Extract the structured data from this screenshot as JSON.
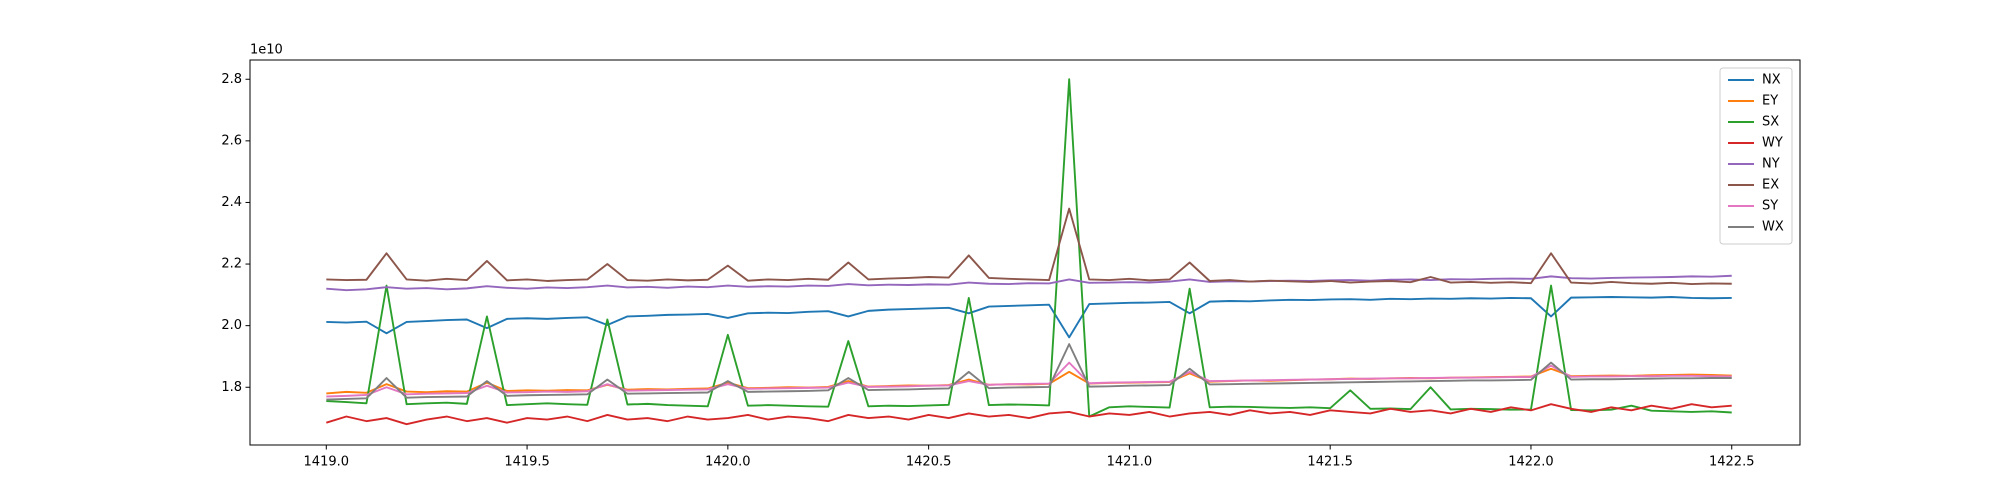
{
  "chart_data": {
    "type": "line",
    "y_offset_label": "1e10",
    "x": [
      1419,
      1419.05,
      1419.1,
      1419.15,
      1419.2,
      1419.25,
      1419.3,
      1419.35,
      1419.4,
      1419.45,
      1419.5,
      1419.55,
      1419.6,
      1419.65,
      1419.7,
      1419.75,
      1419.8,
      1419.85,
      1419.9,
      1419.95,
      1420,
      1420.05,
      1420.1,
      1420.15,
      1420.2,
      1420.25,
      1420.3,
      1420.35,
      1420.4,
      1420.45,
      1420.5,
      1420.55,
      1420.6,
      1420.65,
      1420.7,
      1420.75,
      1420.8,
      1420.85,
      1420.9,
      1420.95,
      1421,
      1421.05,
      1421.1,
      1421.15,
      1421.2,
      1421.25,
      1421.3,
      1421.35,
      1421.4,
      1421.45,
      1421.5,
      1421.55,
      1421.6,
      1421.65,
      1421.7,
      1421.75,
      1421.8,
      1421.85,
      1421.9,
      1421.95,
      1422,
      1422.05,
      1422.1,
      1422.15,
      1422.2,
      1422.25,
      1422.3,
      1422.35,
      1422.4,
      1422.45,
      1422.5
    ],
    "xlim": [
      1418.81,
      1422.67
    ],
    "xticks": [
      {
        "value": 1419,
        "label": "1419.0"
      },
      1419.5,
      {
        "value": 1420,
        "label": "1420.0"
      },
      1420.5,
      {
        "value": 1421,
        "label": "1421.0"
      },
      1421.5,
      {
        "value": 1422,
        "label": "1422.0"
      },
      1422.5
    ],
    "ylim": [
      1.6125,
      2.8625
    ],
    "yticks": [
      1.8,
      {
        "value": 2,
        "label": "2.0"
      },
      2.2,
      2.4,
      2.6,
      2.8
    ],
    "legend": "upper right",
    "series": [
      {
        "name": "NX",
        "color": "#1f77b4",
        "values": [
          2.012,
          2.01,
          2.013,
          1.975,
          2.012,
          2.015,
          2.018,
          2.02,
          1.992,
          2.022,
          2.024,
          2.022,
          2.025,
          2.027,
          2.002,
          2.03,
          2.032,
          2.035,
          2.036,
          2.038,
          2.025,
          2.04,
          2.042,
          2.041,
          2.045,
          2.047,
          2.03,
          2.048,
          2.052,
          2.054,
          2.056,
          2.058,
          2.04,
          2.062,
          2.064,
          2.066,
          2.068,
          1.962,
          2.07,
          2.072,
          2.074,
          2.075,
          2.077,
          2.04,
          2.078,
          2.08,
          2.079,
          2.082,
          2.084,
          2.083,
          2.085,
          2.086,
          2.084,
          2.087,
          2.086,
          2.088,
          2.087,
          2.089,
          2.088,
          2.09,
          2.089,
          2.03,
          2.091,
          2.092,
          2.093,
          2.092,
          2.091,
          2.093,
          2.09,
          2.089,
          2.09
        ]
      },
      {
        "name": "EY",
        "color": "#ff7f0e",
        "values": [
          1.78,
          1.785,
          1.782,
          1.81,
          1.786,
          1.784,
          1.787,
          1.786,
          1.815,
          1.788,
          1.79,
          1.789,
          1.791,
          1.79,
          1.808,
          1.792,
          1.794,
          1.793,
          1.795,
          1.796,
          1.815,
          1.797,
          1.798,
          1.8,
          1.799,
          1.801,
          1.82,
          1.802,
          1.804,
          1.806,
          1.805,
          1.807,
          1.825,
          1.808,
          1.81,
          1.809,
          1.811,
          1.85,
          1.812,
          1.814,
          1.815,
          1.816,
          1.817,
          1.845,
          1.818,
          1.82,
          1.822,
          1.821,
          1.823,
          1.825,
          1.826,
          1.828,
          1.827,
          1.829,
          1.83,
          1.829,
          1.831,
          1.832,
          1.833,
          1.834,
          1.835,
          1.86,
          1.836,
          1.837,
          1.838,
          1.837,
          1.839,
          1.84,
          1.841,
          1.84,
          1.838
        ]
      },
      {
        "name": "SX",
        "color": "#2ca02c",
        "values": [
          1.755,
          1.752,
          1.748,
          2.13,
          1.745,
          1.748,
          1.75,
          1.746,
          2.03,
          1.742,
          1.745,
          1.748,
          1.745,
          1.743,
          2.02,
          1.744,
          1.746,
          1.742,
          1.74,
          1.738,
          1.97,
          1.74,
          1.742,
          1.74,
          1.738,
          1.737,
          1.95,
          1.738,
          1.74,
          1.739,
          1.741,
          1.743,
          2.09,
          1.742,
          1.744,
          1.743,
          1.741,
          2.8,
          1.705,
          1.735,
          1.738,
          1.736,
          1.734,
          2.12,
          1.735,
          1.737,
          1.736,
          1.734,
          1.733,
          1.735,
          1.732,
          1.79,
          1.73,
          1.731,
          1.729,
          1.8,
          1.728,
          1.73,
          1.729,
          1.727,
          1.728,
          2.13,
          1.726,
          1.725,
          1.727,
          1.74,
          1.724,
          1.722,
          1.72,
          1.722,
          1.718
        ]
      },
      {
        "name": "WY",
        "color": "#d62728",
        "values": [
          1.685,
          1.705,
          1.69,
          1.7,
          1.68,
          1.695,
          1.705,
          1.69,
          1.7,
          1.685,
          1.7,
          1.695,
          1.705,
          1.69,
          1.71,
          1.695,
          1.7,
          1.69,
          1.705,
          1.695,
          1.7,
          1.71,
          1.695,
          1.705,
          1.7,
          1.69,
          1.71,
          1.7,
          1.705,
          1.695,
          1.71,
          1.7,
          1.715,
          1.705,
          1.71,
          1.7,
          1.715,
          1.72,
          1.705,
          1.715,
          1.71,
          1.72,
          1.705,
          1.715,
          1.72,
          1.71,
          1.725,
          1.715,
          1.72,
          1.71,
          1.725,
          1.72,
          1.715,
          1.73,
          1.72,
          1.725,
          1.715,
          1.73,
          1.72,
          1.735,
          1.725,
          1.745,
          1.73,
          1.72,
          1.735,
          1.725,
          1.74,
          1.73,
          1.745,
          1.735,
          1.74
        ]
      },
      {
        "name": "NY",
        "color": "#9467bd",
        "values": [
          2.12,
          2.115,
          2.118,
          2.125,
          2.12,
          2.122,
          2.118,
          2.121,
          2.128,
          2.123,
          2.12,
          2.124,
          2.122,
          2.125,
          2.13,
          2.124,
          2.126,
          2.123,
          2.127,
          2.125,
          2.13,
          2.126,
          2.128,
          2.127,
          2.13,
          2.129,
          2.135,
          2.131,
          2.133,
          2.132,
          2.134,
          2.133,
          2.14,
          2.136,
          2.135,
          2.138,
          2.137,
          2.15,
          2.139,
          2.14,
          2.141,
          2.14,
          2.143,
          2.15,
          2.142,
          2.144,
          2.143,
          2.145,
          2.146,
          2.145,
          2.147,
          2.148,
          2.146,
          2.149,
          2.15,
          2.148,
          2.151,
          2.15,
          2.152,
          2.153,
          2.152,
          2.16,
          2.154,
          2.153,
          2.155,
          2.156,
          2.157,
          2.158,
          2.16,
          2.159,
          2.162
        ]
      },
      {
        "name": "EX",
        "color": "#8c564b",
        "values": [
          2.15,
          2.148,
          2.149,
          2.235,
          2.15,
          2.146,
          2.152,
          2.148,
          2.21,
          2.147,
          2.15,
          2.145,
          2.148,
          2.15,
          2.2,
          2.148,
          2.146,
          2.15,
          2.147,
          2.149,
          2.195,
          2.146,
          2.15,
          2.148,
          2.152,
          2.149,
          2.205,
          2.15,
          2.153,
          2.155,
          2.158,
          2.156,
          2.228,
          2.155,
          2.152,
          2.15,
          2.148,
          2.38,
          2.15,
          2.148,
          2.152,
          2.147,
          2.15,
          2.205,
          2.145,
          2.148,
          2.143,
          2.146,
          2.144,
          2.142,
          2.145,
          2.14,
          2.143,
          2.145,
          2.141,
          2.158,
          2.14,
          2.142,
          2.139,
          2.141,
          2.138,
          2.235,
          2.14,
          2.137,
          2.142,
          2.138,
          2.136,
          2.139,
          2.135,
          2.137,
          2.136
        ]
      },
      {
        "name": "SY",
        "color": "#e377c2",
        "values": [
          1.77,
          1.772,
          1.775,
          1.8,
          1.777,
          1.779,
          1.78,
          1.781,
          1.805,
          1.783,
          1.784,
          1.786,
          1.785,
          1.787,
          1.81,
          1.789,
          1.79,
          1.791,
          1.792,
          1.793,
          1.81,
          1.795,
          1.796,
          1.797,
          1.798,
          1.799,
          1.815,
          1.801,
          1.802,
          1.803,
          1.805,
          1.806,
          1.82,
          1.808,
          1.81,
          1.811,
          1.812,
          1.88,
          1.813,
          1.815,
          1.816,
          1.817,
          1.818,
          1.85,
          1.82,
          1.821,
          1.822,
          1.823,
          1.824,
          1.825,
          1.826,
          1.827,
          1.828,
          1.829,
          1.829,
          1.83,
          1.831,
          1.831,
          1.832,
          1.833,
          1.833,
          1.87,
          1.834,
          1.835,
          1.835,
          1.836,
          1.836,
          1.837,
          1.837,
          1.836,
          1.835
        ]
      },
      {
        "name": "WX",
        "color": "#7f7f7f",
        "values": [
          1.76,
          1.762,
          1.764,
          1.83,
          1.766,
          1.768,
          1.769,
          1.77,
          1.82,
          1.772,
          1.774,
          1.775,
          1.776,
          1.777,
          1.825,
          1.779,
          1.78,
          1.781,
          1.782,
          1.783,
          1.82,
          1.785,
          1.786,
          1.787,
          1.788,
          1.79,
          1.83,
          1.791,
          1.792,
          1.793,
          1.795,
          1.796,
          1.85,
          1.797,
          1.799,
          1.8,
          1.801,
          1.94,
          1.802,
          1.803,
          1.805,
          1.806,
          1.807,
          1.86,
          1.809,
          1.81,
          1.811,
          1.812,
          1.813,
          1.814,
          1.815,
          1.816,
          1.817,
          1.818,
          1.819,
          1.82,
          1.821,
          1.822,
          1.822,
          1.823,
          1.824,
          1.88,
          1.825,
          1.826,
          1.826,
          1.827,
          1.828,
          1.829,
          1.829,
          1.83,
          1.83
        ]
      }
    ]
  }
}
